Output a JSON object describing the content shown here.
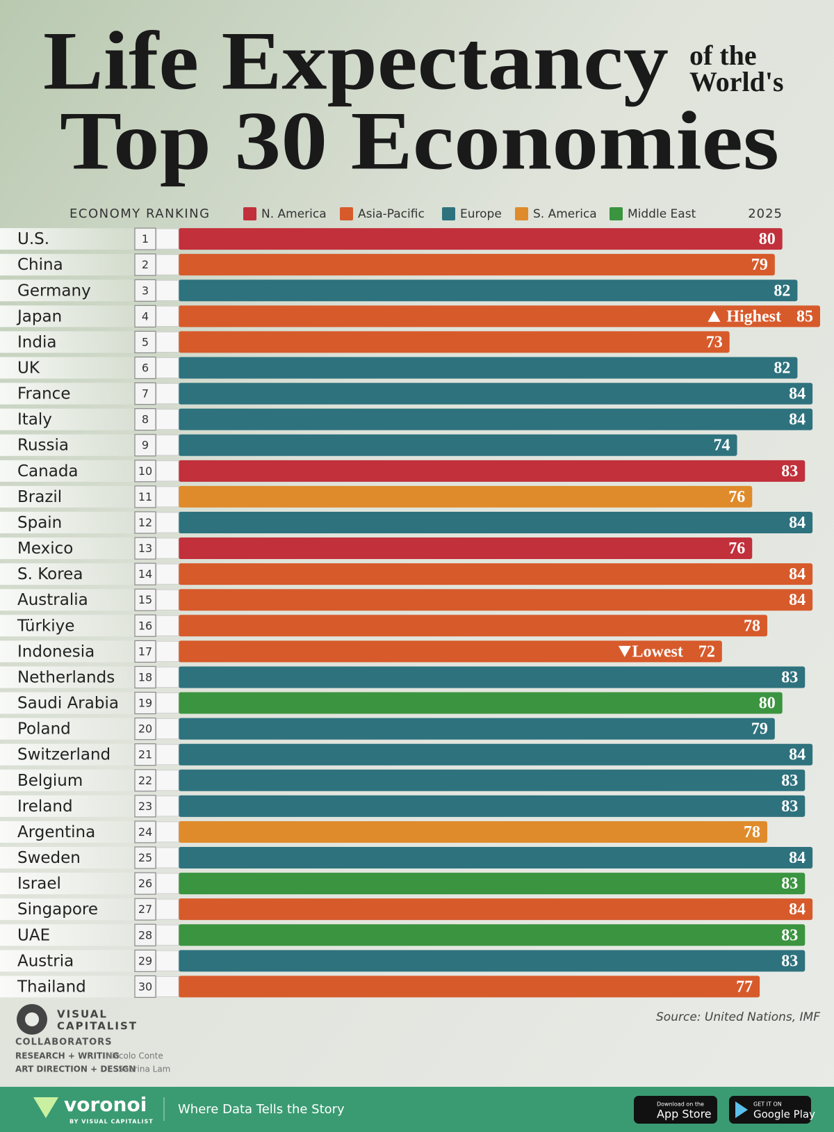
{
  "chart_data": {
    "type": "bar",
    "title": [
      "Life Expectancy",
      "Top 30 Economies"
    ],
    "subtitle": [
      "of the",
      "World's"
    ],
    "category_header": "ECONOMY RANKING",
    "value_header": "2025",
    "categories": [
      "U.S.",
      "China",
      "Germany",
      "Japan",
      "India",
      "UK",
      "France",
      "Italy",
      "Russia",
      "Canada",
      "Brazil",
      "Spain",
      "Mexico",
      "S. Korea",
      "Australia",
      "Türkiye",
      "Indonesia",
      "Netherlands",
      "Saudi Arabia",
      "Poland",
      "Switzerland",
      "Belgium",
      "Ireland",
      "Argentina",
      "Sweden",
      "Israel",
      "Singapore",
      "UAE",
      "Austria",
      "Thailand"
    ],
    "ranks": [
      1,
      2,
      3,
      4,
      5,
      6,
      7,
      8,
      9,
      10,
      11,
      12,
      13,
      14,
      15,
      16,
      17,
      18,
      19,
      20,
      21,
      22,
      23,
      24,
      25,
      26,
      27,
      28,
      29,
      30
    ],
    "series": [
      {
        "name": "N. America",
        "color": "#c1303b",
        "values": [
          80,
          null,
          null,
          null,
          null,
          null,
          null,
          null,
          null,
          83,
          null,
          null,
          76,
          null,
          null,
          null,
          null,
          null,
          null,
          null,
          null,
          null,
          null,
          null,
          null,
          null,
          null,
          null,
          null,
          null
        ]
      },
      {
        "name": "Asia-Pacific",
        "color": "#d75a2b",
        "values": [
          null,
          79,
          null,
          85,
          73,
          null,
          null,
          null,
          null,
          null,
          null,
          null,
          null,
          84,
          84,
          78,
          72,
          null,
          null,
          null,
          null,
          null,
          null,
          null,
          null,
          null,
          84,
          null,
          null,
          77
        ]
      },
      {
        "name": "Europe",
        "color": "#2e727e",
        "values": [
          null,
          null,
          82,
          null,
          null,
          82,
          84,
          84,
          74,
          null,
          null,
          84,
          null,
          null,
          null,
          null,
          null,
          83,
          null,
          79,
          84,
          83,
          83,
          null,
          84,
          null,
          null,
          null,
          83,
          null
        ]
      },
      {
        "name": "S. America",
        "color": "#df8b2b",
        "values": [
          null,
          null,
          null,
          null,
          null,
          null,
          null,
          null,
          null,
          null,
          76,
          null,
          null,
          null,
          null,
          null,
          null,
          null,
          null,
          null,
          null,
          null,
          null,
          78,
          null,
          null,
          null,
          null,
          null,
          null
        ]
      },
      {
        "name": "Middle East",
        "color": "#3b943f",
        "values": [
          null,
          null,
          null,
          null,
          null,
          null,
          null,
          null,
          null,
          null,
          null,
          null,
          null,
          null,
          null,
          null,
          null,
          null,
          80,
          null,
          null,
          null,
          null,
          null,
          null,
          83,
          null,
          83,
          null,
          null
        ]
      }
    ],
    "xlim": [
      0,
      85
    ],
    "annotations": [
      {
        "category": "Japan",
        "text": "Highest",
        "direction": "up"
      },
      {
        "category": "Indonesia",
        "text": "Lowest",
        "direction": "down"
      }
    ],
    "source": "Source: United Nations, IMF"
  },
  "credits": {
    "brand": [
      "VISUAL",
      "CAPITALIST"
    ],
    "heading": "COLLABORATORS",
    "roles": [
      {
        "role": "RESEARCH + WRITING",
        "name": "Niccolo Conte"
      },
      {
        "role": "ART DIRECTION + DESIGN",
        "name": "Sabrina Lam"
      }
    ]
  },
  "footer": {
    "brand": "voronoi",
    "byline": "BY VISUAL CAPITALIST",
    "tagline": "Where Data Tells the Story",
    "app_store": [
      "Download on the",
      "App Store"
    ],
    "google_play": [
      "GET IT ON",
      "Google Play"
    ]
  }
}
